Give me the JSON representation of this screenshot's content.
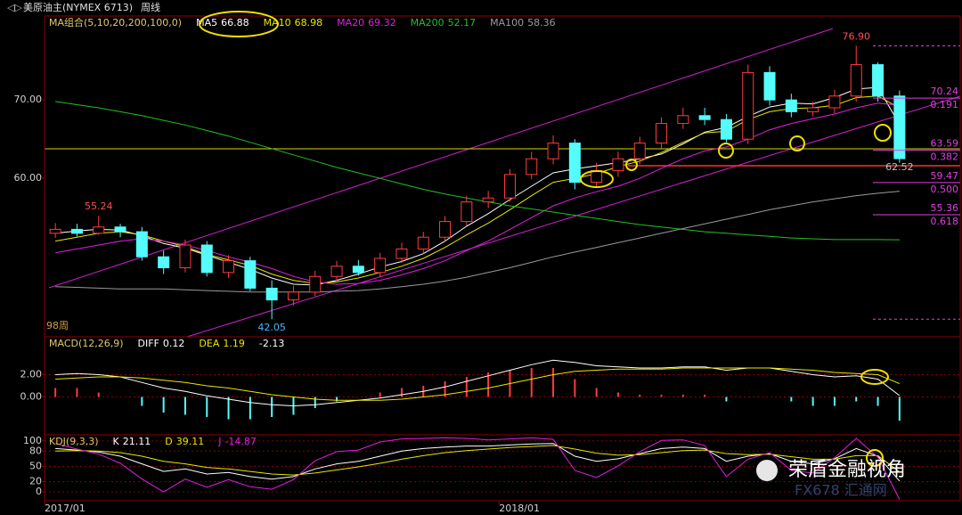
{
  "header": {
    "title": "美原油主(NYMEX 6713)",
    "period": "周线"
  },
  "watermark": {
    "brand": "荣盾金融视角",
    "site": "FX678 汇通网"
  },
  "chart_data": [
    {
      "type": "candlestick",
      "name": "MA组合(5,10,20,200,100,0)",
      "up_color": "#ff3c3c",
      "down_color": "#54fcfc",
      "open": [
        53.0,
        53.5,
        53.0,
        53.8,
        53.2,
        50.0,
        48.6,
        51.5,
        48.0,
        49.5,
        46.0,
        44.5,
        45.5,
        47.5,
        48.8,
        48.0,
        49.8,
        51.0,
        52.5,
        54.5,
        57.0,
        57.5,
        60.5,
        62.5,
        64.5,
        59.5,
        61.0,
        62.5,
        64.5,
        67.0,
        68.0,
        67.5,
        65.0,
        73.5,
        70.0,
        68.5,
        69.0,
        70.5,
        74.5,
        70.5
      ],
      "high": [
        54.3,
        54.2,
        55.24,
        54.2,
        53.8,
        50.8,
        52.2,
        52.0,
        50.2,
        50.0,
        47.0,
        46.3,
        48.2,
        49.5,
        49.6,
        50.5,
        51.8,
        53.2,
        55.2,
        57.8,
        58.4,
        61.2,
        63.4,
        65.5,
        65.0,
        62.0,
        63.4,
        65.3,
        67.8,
        69.0,
        69.0,
        68.2,
        74.5,
        74.3,
        70.8,
        69.8,
        71.3,
        76.9,
        74.8,
        71.2
      ],
      "low": [
        52.4,
        52.6,
        52.8,
        52.5,
        49.5,
        47.8,
        48.0,
        47.5,
        47.3,
        45.6,
        42.05,
        43.8,
        45.0,
        46.9,
        47.6,
        47.4,
        49.2,
        50.4,
        52.0,
        54.0,
        56.2,
        57.0,
        59.9,
        61.8,
        58.6,
        58.9,
        60.2,
        61.8,
        63.8,
        66.3,
        66.8,
        64.6,
        64.4,
        69.3,
        67.8,
        67.9,
        68.3,
        69.8,
        69.8,
        62.0
      ],
      "close": [
        53.5,
        53.0,
        53.8,
        53.2,
        50.0,
        48.6,
        51.5,
        48.0,
        49.5,
        46.0,
        44.5,
        45.5,
        47.5,
        48.8,
        48.0,
        49.8,
        51.0,
        52.5,
        54.5,
        57.0,
        57.5,
        60.5,
        62.5,
        64.5,
        59.5,
        61.0,
        62.5,
        64.5,
        67.0,
        68.0,
        67.5,
        65.0,
        73.5,
        70.0,
        68.5,
        69.0,
        70.5,
        74.5,
        70.5,
        62.52
      ],
      "series": [
        {
          "name": "MA5",
          "color": "#ffffff",
          "values": [
            53.0,
            53.3,
            53.5,
            53.4,
            52.7,
            51.7,
            51.1,
            50.2,
            49.3,
            48.4,
            47.3,
            46.5,
            46.4,
            47.0,
            47.8,
            48.7,
            49.4,
            50.4,
            52.0,
            53.9,
            55.5,
            57.3,
            59.0,
            60.7,
            61.2,
            61.6,
            62.0,
            62.5,
            63.1,
            64.4,
            65.9,
            66.5,
            67.9,
            69.1,
            69.6,
            69.5,
            70.3,
            71.4,
            71.6,
            66.88
          ]
        },
        {
          "name": "MA10",
          "color": "#e8e800",
          "values": [
            52.0,
            52.5,
            53.0,
            53.2,
            52.8,
            52.0,
            51.3,
            50.3,
            49.6,
            48.9,
            47.8,
            47.0,
            46.6,
            46.8,
            47.3,
            48.0,
            48.8,
            49.8,
            51.2,
            52.8,
            54.3,
            56.0,
            57.8,
            59.5,
            60.0,
            60.6,
            61.5,
            62.2,
            63.3,
            64.6,
            65.8,
            66.0,
            67.5,
            68.5,
            68.9,
            69.0,
            69.3,
            70.3,
            70.5,
            68.98
          ]
        },
        {
          "name": "MA20",
          "color": "#e020e0",
          "values": [
            50.5,
            51.0,
            51.5,
            52.0,
            52.3,
            52.0,
            51.5,
            50.8,
            50.0,
            49.3,
            48.5,
            47.5,
            46.8,
            46.5,
            46.6,
            47.0,
            47.7,
            48.5,
            49.5,
            50.8,
            52.0,
            53.5,
            55.0,
            56.5,
            57.5,
            58.3,
            59.0,
            60.0,
            61.3,
            62.5,
            63.5,
            64.0,
            65.0,
            66.2,
            67.0,
            67.6,
            68.2,
            69.0,
            69.6,
            69.32
          ]
        },
        {
          "name": "MA200",
          "color": "#22c022",
          "values": [
            69.8,
            69.4,
            69.0,
            68.5,
            68.0,
            67.4,
            66.8,
            66.1,
            65.4,
            64.6,
            63.8,
            63.0,
            62.2,
            61.4,
            60.7,
            60.0,
            59.3,
            58.6,
            58.0,
            57.5,
            57.0,
            56.5,
            56.1,
            55.7,
            55.3,
            54.9,
            54.5,
            54.1,
            53.8,
            53.5,
            53.2,
            53.0,
            52.8,
            52.6,
            52.4,
            52.3,
            52.2,
            52.2,
            52.2,
            52.17
          ]
        },
        {
          "name": "MA100",
          "color": "#9a9a9a",
          "values": [
            46.2,
            46.1,
            46.0,
            45.9,
            45.9,
            45.9,
            45.8,
            45.7,
            45.6,
            45.5,
            45.5,
            45.5,
            45.5,
            45.6,
            45.7,
            45.9,
            46.2,
            46.5,
            46.9,
            47.4,
            48.0,
            48.6,
            49.3,
            50.0,
            50.6,
            51.2,
            51.8,
            52.4,
            53.0,
            53.6,
            54.2,
            54.8,
            55.4,
            56.0,
            56.5,
            57.0,
            57.4,
            57.8,
            58.1,
            58.36
          ]
        }
      ],
      "xlim": [
        -0.5,
        39.5
      ],
      "ylim": [
        39.8,
        80.7
      ],
      "yticks": [
        {
          "value": 70,
          "label": "70.00"
        },
        {
          "value": 60,
          "label": "60.00"
        }
      ],
      "grid": false,
      "annotations": [
        {
          "index": 37,
          "value": 76.9,
          "label": "76.90",
          "color": "#ff5050"
        },
        {
          "index": 2,
          "value": 55.24,
          "color": "#ff5050"
        },
        {
          "index": 10,
          "value": 42.05,
          "color": "#40b8ff"
        },
        {
          "index": 39,
          "value": 62.52,
          "color": "#c0c0c0"
        }
      ],
      "fib_color": "#e040e0",
      "fib_levels": [
        {
          "value": 70.24,
          "ratio": 0.191
        },
        {
          "value": 63.59,
          "ratio": 0.382
        },
        {
          "value": 59.47,
          "ratio": {
            "value": 0.5,
            "label": "0.500"
          }
        },
        {
          "value": 55.36,
          "ratio": 0.618
        }
      ],
      "bar_count_label": "98周"
    },
    {
      "type": "macd",
      "name": "MACD(12,26,9)",
      "series": [
        {
          "name": "DIFF",
          "color": "#ffffff",
          "values": [
            2.0,
            2.1,
            2.0,
            1.8,
            1.3,
            0.8,
            0.5,
            0.1,
            -0.2,
            -0.5,
            -0.7,
            -0.8,
            -0.7,
            -0.5,
            -0.3,
            -0.1,
            0.2,
            0.5,
            0.9,
            1.4,
            1.9,
            2.4,
            2.9,
            3.3,
            3.1,
            2.8,
            2.7,
            2.6,
            2.6,
            2.7,
            2.7,
            2.4,
            2.6,
            2.6,
            2.3,
            2.0,
            1.8,
            1.9,
            1.6,
            0.12
          ]
        },
        {
          "name": "DEA",
          "color": "#e8e800",
          "values": [
            1.6,
            1.7,
            1.8,
            1.8,
            1.7,
            1.5,
            1.3,
            1.0,
            0.8,
            0.5,
            0.2,
            0,
            -0.2,
            -0.3,
            -0.3,
            -0.3,
            -0.2,
            0,
            0.2,
            0.5,
            0.8,
            1.2,
            1.6,
            2.0,
            2.3,
            2.4,
            2.5,
            2.5,
            2.5,
            2.6,
            2.6,
            2.6,
            2.6,
            2.6,
            2.5,
            2.4,
            2.2,
            2.1,
            2.0,
            1.19
          ]
        }
      ],
      "histogram": {
        "up_color": "#ff3c3c",
        "down_color": "#54fcfc",
        "values": [
          0.8,
          0.8,
          0.4,
          0,
          -0.8,
          -1.4,
          -1.6,
          -1.8,
          -2.0,
          -2.0,
          -1.8,
          -1.6,
          -1.0,
          -0.4,
          0,
          0.4,
          0.8,
          1.0,
          1.4,
          1.8,
          2.2,
          2.4,
          2.6,
          2.6,
          1.6,
          0.8,
          0.4,
          0.2,
          0.2,
          0.2,
          0.2,
          -0.4,
          0,
          0,
          -0.4,
          -0.8,
          -0.8,
          -0.4,
          -0.8,
          -2.13
        ]
      },
      "xlim": [
        -0.5,
        39.5
      ],
      "ylim": [
        -3.4,
        5.4
      ],
      "yticks": [
        {
          "value": 2,
          "label": "2.00"
        },
        {
          "value": 0,
          "label": "0.00"
        }
      ],
      "grid": true
    },
    {
      "type": "kdj",
      "name": "KDJ(9,3,3)",
      "series": [
        {
          "name": "K",
          "color": "#ffffff",
          "values": [
            85,
            82,
            78,
            70,
            55,
            40,
            45,
            35,
            38,
            30,
            25,
            30,
            45,
            55,
            60,
            70,
            80,
            85,
            88,
            90,
            90,
            92,
            94,
            95,
            70,
            60,
            65,
            75,
            85,
            88,
            85,
            60,
            70,
            75,
            60,
            55,
            65,
            85,
            70,
            21.11
          ]
        },
        {
          "name": "D",
          "color": "#e8e800",
          "values": [
            80,
            81,
            80,
            77,
            70,
            60,
            55,
            48,
            45,
            40,
            35,
            33,
            37,
            43,
            49,
            56,
            64,
            71,
            77,
            81,
            84,
            87,
            89,
            91,
            84,
            76,
            72,
            73,
            77,
            81,
            82,
            75,
            73,
            74,
            69,
            64,
            64,
            71,
            71,
            39.11
          ]
        },
        {
          "name": "J",
          "color": "#e020e0",
          "values": [
            95,
            84,
            74,
            56,
            25,
            0,
            25,
            9,
            24,
            10,
            5,
            24,
            61,
            79,
            82,
            98,
            104,
            105,
            106,
            105,
            102,
            104,
            106,
            103,
            42,
            28,
            51,
            79,
            101,
            102,
            91,
            30,
            64,
            77,
            42,
            37,
            67,
            105,
            68,
            -14.87
          ]
        }
      ],
      "xlim": [
        -0.5,
        39.5
      ],
      "ylim": [
        -17.5,
        112
      ],
      "yticks": [
        100,
        80,
        50,
        20,
        0
      ],
      "grid": true,
      "xticks": [
        {
          "value": -0.5,
          "label": "2017/01"
        },
        {
          "value": 20.5,
          "label": "2018/01"
        }
      ]
    }
  ]
}
